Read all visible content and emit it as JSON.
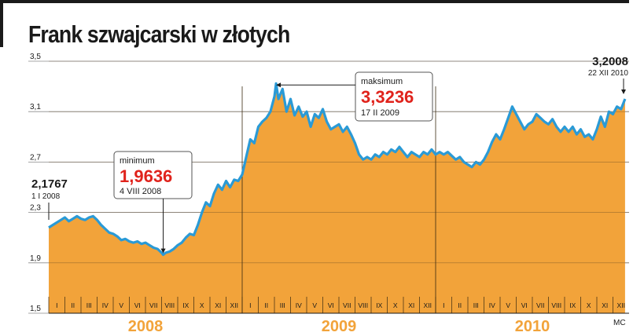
{
  "title": "Frank szwajcarski w złotych",
  "credit": "MC",
  "colors": {
    "area": "#f2a33a",
    "line": "#2a9ad6",
    "min_value": "#e0231c",
    "max_value": "#e0231c",
    "text": "#1a1a1a"
  },
  "chart_data": {
    "type": "area",
    "title": "Frank szwajcarski w złotych",
    "ylim": [
      1.5,
      3.5
    ],
    "yticks": [
      "3,5",
      "3,1",
      "2,7",
      "2,3",
      "1,9",
      "1,5"
    ],
    "ytick_values": [
      3.5,
      3.1,
      2.7,
      2.3,
      1.9,
      1.5
    ],
    "x_start": "2008-01",
    "x_months": 36,
    "month_labels": [
      "I",
      "II",
      "III",
      "IV",
      "V",
      "VI",
      "VII",
      "VIII",
      "IX",
      "X",
      "XI",
      "XII",
      "I",
      "II",
      "III",
      "IV",
      "V",
      "VI",
      "VII",
      "VIII",
      "IX",
      "X",
      "XI",
      "XII",
      "I",
      "II",
      "III",
      "IV",
      "V",
      "VI",
      "VII",
      "VIII",
      "IX",
      "X",
      "XI",
      "XII"
    ],
    "years": [
      "2008",
      "2009",
      "2010"
    ],
    "series": [
      {
        "values": [
          [
            0.0,
            2.18
          ],
          [
            0.25,
            2.2
          ],
          [
            0.5,
            2.22
          ],
          [
            0.75,
            2.24
          ],
          [
            1.0,
            2.26
          ],
          [
            1.25,
            2.23
          ],
          [
            1.5,
            2.25
          ],
          [
            1.75,
            2.27
          ],
          [
            2.0,
            2.25
          ],
          [
            2.25,
            2.24
          ],
          [
            2.5,
            2.26
          ],
          [
            2.75,
            2.27
          ],
          [
            3.0,
            2.24
          ],
          [
            3.25,
            2.2
          ],
          [
            3.5,
            2.17
          ],
          [
            3.75,
            2.14
          ],
          [
            4.0,
            2.13
          ],
          [
            4.25,
            2.11
          ],
          [
            4.5,
            2.08
          ],
          [
            4.75,
            2.09
          ],
          [
            5.0,
            2.07
          ],
          [
            5.25,
            2.06
          ],
          [
            5.5,
            2.07
          ],
          [
            5.75,
            2.05
          ],
          [
            6.0,
            2.06
          ],
          [
            6.25,
            2.04
          ],
          [
            6.5,
            2.02
          ],
          [
            6.75,
            2.01
          ],
          [
            7.0,
            1.98
          ],
          [
            7.1,
            1.964
          ],
          [
            7.25,
            1.98
          ],
          [
            7.5,
            1.99
          ],
          [
            7.75,
            2.01
          ],
          [
            8.0,
            2.04
          ],
          [
            8.25,
            2.06
          ],
          [
            8.5,
            2.1
          ],
          [
            8.75,
            2.13
          ],
          [
            9.0,
            2.12
          ],
          [
            9.25,
            2.2
          ],
          [
            9.5,
            2.3
          ],
          [
            9.75,
            2.38
          ],
          [
            10.0,
            2.35
          ],
          [
            10.25,
            2.45
          ],
          [
            10.5,
            2.52
          ],
          [
            10.75,
            2.48
          ],
          [
            11.0,
            2.55
          ],
          [
            11.25,
            2.5
          ],
          [
            11.5,
            2.56
          ],
          [
            11.75,
            2.55
          ],
          [
            12.0,
            2.6
          ],
          [
            12.25,
            2.74
          ],
          [
            12.5,
            2.88
          ],
          [
            12.75,
            2.85
          ],
          [
            13.0,
            2.98
          ],
          [
            13.25,
            3.02
          ],
          [
            13.5,
            3.05
          ],
          [
            13.75,
            3.1
          ],
          [
            14.0,
            3.22
          ],
          [
            14.1,
            3.3236
          ],
          [
            14.25,
            3.2
          ],
          [
            14.5,
            3.28
          ],
          [
            14.75,
            3.1
          ],
          [
            15.0,
            3.2
          ],
          [
            15.25,
            3.07
          ],
          [
            15.5,
            3.14
          ],
          [
            15.75,
            3.06
          ],
          [
            16.0,
            3.1
          ],
          [
            16.25,
            2.98
          ],
          [
            16.5,
            3.08
          ],
          [
            16.75,
            3.05
          ],
          [
            17.0,
            3.12
          ],
          [
            17.25,
            3.02
          ],
          [
            17.5,
            2.96
          ],
          [
            17.75,
            2.98
          ],
          [
            18.0,
            3.0
          ],
          [
            18.25,
            2.94
          ],
          [
            18.5,
            2.98
          ],
          [
            18.75,
            2.92
          ],
          [
            19.0,
            2.85
          ],
          [
            19.25,
            2.76
          ],
          [
            19.5,
            2.72
          ],
          [
            19.75,
            2.74
          ],
          [
            20.0,
            2.72
          ],
          [
            20.25,
            2.76
          ],
          [
            20.5,
            2.74
          ],
          [
            20.75,
            2.78
          ],
          [
            21.0,
            2.76
          ],
          [
            21.25,
            2.8
          ],
          [
            21.5,
            2.78
          ],
          [
            21.75,
            2.82
          ],
          [
            22.0,
            2.78
          ],
          [
            22.25,
            2.74
          ],
          [
            22.5,
            2.78
          ],
          [
            22.75,
            2.76
          ],
          [
            23.0,
            2.74
          ],
          [
            23.25,
            2.78
          ],
          [
            23.5,
            2.76
          ],
          [
            23.75,
            2.8
          ],
          [
            24.0,
            2.76
          ],
          [
            24.25,
            2.78
          ],
          [
            24.5,
            2.76
          ],
          [
            24.75,
            2.78
          ],
          [
            25.0,
            2.75
          ],
          [
            25.25,
            2.72
          ],
          [
            25.5,
            2.74
          ],
          [
            25.75,
            2.7
          ],
          [
            26.0,
            2.68
          ],
          [
            26.25,
            2.66
          ],
          [
            26.5,
            2.7
          ],
          [
            26.75,
            2.68
          ],
          [
            27.0,
            2.72
          ],
          [
            27.25,
            2.78
          ],
          [
            27.5,
            2.86
          ],
          [
            27.75,
            2.92
          ],
          [
            28.0,
            2.88
          ],
          [
            28.25,
            2.96
          ],
          [
            28.5,
            3.05
          ],
          [
            28.75,
            3.14
          ],
          [
            29.0,
            3.08
          ],
          [
            29.25,
            3.02
          ],
          [
            29.5,
            2.96
          ],
          [
            29.75,
            3.0
          ],
          [
            30.0,
            3.02
          ],
          [
            30.25,
            3.08
          ],
          [
            30.5,
            3.05
          ],
          [
            30.75,
            3.02
          ],
          [
            31.0,
            3.0
          ],
          [
            31.25,
            3.04
          ],
          [
            31.5,
            2.98
          ],
          [
            31.75,
            2.94
          ],
          [
            32.0,
            2.98
          ],
          [
            32.25,
            2.94
          ],
          [
            32.5,
            2.98
          ],
          [
            32.75,
            2.92
          ],
          [
            33.0,
            2.96
          ],
          [
            33.25,
            2.9
          ],
          [
            33.5,
            2.92
          ],
          [
            33.75,
            2.88
          ],
          [
            34.0,
            2.96
          ],
          [
            34.25,
            3.06
          ],
          [
            34.5,
            2.98
          ],
          [
            34.75,
            3.1
          ],
          [
            35.0,
            3.08
          ],
          [
            35.25,
            3.14
          ],
          [
            35.5,
            3.12
          ],
          [
            35.75,
            3.2008
          ]
        ]
      }
    ],
    "annotations": {
      "start": {
        "value": "2,1767",
        "date": "1 I 2008"
      },
      "min": {
        "label": "minimum",
        "value": "1,9636",
        "date": "4 VIII 2008"
      },
      "max": {
        "label": "maksimum",
        "value": "3,3236",
        "date": "17 II 2009"
      },
      "end": {
        "value": "3,2008",
        "date": "22 XII 2010"
      }
    }
  }
}
